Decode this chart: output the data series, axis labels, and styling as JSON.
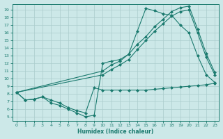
{
  "line1_x": [
    0,
    1,
    2,
    3,
    4,
    5,
    6,
    7,
    8,
    9,
    10,
    11,
    12,
    13,
    14,
    15,
    16,
    17,
    18,
    19,
    20,
    21,
    22,
    23
  ],
  "line1_y": [
    8.2,
    7.2,
    7.3,
    7.6,
    6.8,
    6.5,
    6.0,
    5.5,
    5.0,
    5.2,
    12.0,
    12.3,
    12.5,
    13.2,
    16.2,
    19.2,
    18.9,
    18.5,
    18.3,
    17.0,
    16.0,
    13.0,
    10.5,
    9.5
  ],
  "line2_x": [
    0,
    10,
    11,
    12,
    13,
    14,
    15,
    16,
    17,
    18,
    19,
    20,
    21,
    22,
    23
  ],
  "line2_y": [
    8.2,
    11.0,
    11.8,
    12.3,
    13.2,
    14.5,
    15.5,
    16.8,
    17.8,
    18.8,
    19.3,
    19.5,
    16.5,
    13.3,
    10.8
  ],
  "line3_x": [
    0,
    10,
    11,
    12,
    13,
    14,
    15,
    16,
    17,
    18,
    19,
    20,
    21,
    22,
    23
  ],
  "line3_y": [
    8.2,
    10.5,
    11.2,
    11.8,
    12.5,
    13.8,
    15.0,
    16.2,
    17.2,
    18.2,
    18.8,
    19.0,
    16.0,
    12.8,
    10.5
  ],
  "line4_x": [
    0,
    1,
    2,
    3,
    4,
    5,
    6,
    7,
    8,
    9,
    10,
    11,
    12,
    13,
    14,
    15,
    16,
    17,
    18,
    19,
    20,
    21,
    22,
    23
  ],
  "line4_y": [
    8.2,
    7.2,
    7.3,
    7.6,
    7.2,
    6.8,
    6.2,
    5.8,
    5.5,
    8.8,
    8.5,
    8.5,
    8.5,
    8.5,
    8.5,
    8.5,
    8.6,
    8.7,
    8.8,
    8.9,
    9.0,
    9.1,
    9.2,
    9.4
  ],
  "line_color": "#1a7a6e",
  "bg_color": "#cce8e8",
  "grid_color": "#aacccc",
  "xlabel": "Humidex (Indice chaleur)",
  "xlim": [
    -0.5,
    23.5
  ],
  "ylim": [
    4.5,
    19.8
  ],
  "yticks": [
    5,
    6,
    7,
    8,
    9,
    10,
    11,
    12,
    13,
    14,
    15,
    16,
    17,
    18,
    19
  ],
  "xticks": [
    0,
    1,
    2,
    3,
    4,
    5,
    6,
    7,
    8,
    9,
    10,
    11,
    12,
    13,
    14,
    15,
    16,
    17,
    18,
    19,
    20,
    21,
    22,
    23
  ],
  "marker": "D",
  "marker_size": 2.0,
  "linewidth": 0.8
}
